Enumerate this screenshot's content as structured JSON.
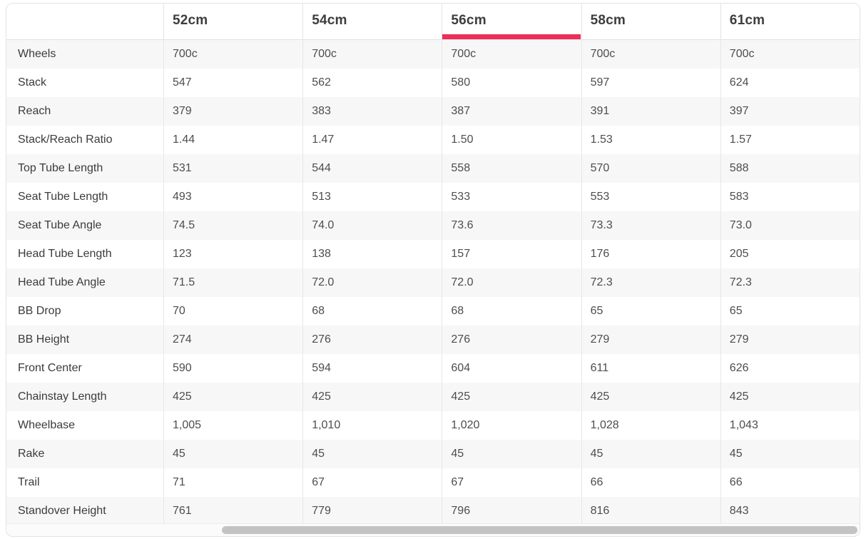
{
  "table": {
    "corner_label": "",
    "columns": [
      {
        "label": "52cm",
        "active": false
      },
      {
        "label": "54cm",
        "active": false
      },
      {
        "label": "56cm",
        "active": true
      },
      {
        "label": "58cm",
        "active": false
      },
      {
        "label": "61cm",
        "active": false
      }
    ],
    "rows": [
      {
        "label": "Wheels",
        "values": [
          "700c",
          "700c",
          "700c",
          "700c",
          "700c"
        ]
      },
      {
        "label": "Stack",
        "values": [
          "547",
          "562",
          "580",
          "597",
          "624"
        ]
      },
      {
        "label": "Reach",
        "values": [
          "379",
          "383",
          "387",
          "391",
          "397"
        ]
      },
      {
        "label": "Stack/Reach Ratio",
        "values": [
          "1.44",
          "1.47",
          "1.50",
          "1.53",
          "1.57"
        ]
      },
      {
        "label": "Top Tube Length",
        "values": [
          "531",
          "544",
          "558",
          "570",
          "588"
        ]
      },
      {
        "label": "Seat Tube Length",
        "values": [
          "493",
          "513",
          "533",
          "553",
          "583"
        ]
      },
      {
        "label": "Seat Tube Angle",
        "values": [
          "74.5",
          "74.0",
          "73.6",
          "73.3",
          "73.0"
        ]
      },
      {
        "label": "Head Tube Length",
        "values": [
          "123",
          "138",
          "157",
          "176",
          "205"
        ]
      },
      {
        "label": "Head Tube Angle",
        "values": [
          "71.5",
          "72.0",
          "72.0",
          "72.3",
          "72.3"
        ]
      },
      {
        "label": "BB Drop",
        "values": [
          "70",
          "68",
          "68",
          "65",
          "65"
        ]
      },
      {
        "label": "BB Height",
        "values": [
          "274",
          "276",
          "276",
          "279",
          "279"
        ]
      },
      {
        "label": "Front Center",
        "values": [
          "590",
          "594",
          "604",
          "611",
          "626"
        ]
      },
      {
        "label": "Chainstay Length",
        "values": [
          "425",
          "425",
          "425",
          "425",
          "425"
        ]
      },
      {
        "label": "Wheelbase",
        "values": [
          "1,005",
          "1,010",
          "1,020",
          "1,028",
          "1,043"
        ]
      },
      {
        "label": "Rake",
        "values": [
          "45",
          "45",
          "45",
          "45",
          "45"
        ]
      },
      {
        "label": "Trail",
        "values": [
          "71",
          "67",
          "67",
          "66",
          "66"
        ]
      },
      {
        "label": "Standover Height",
        "values": [
          "761",
          "779",
          "796",
          "816",
          "843"
        ]
      }
    ]
  },
  "colors": {
    "accent": "#ed2e56",
    "header_text": "#3d3d3d",
    "body_text": "#4d4d4d",
    "row_stripe": "#f7f7f7",
    "card_border": "#e2e2e2",
    "scrollbar_thumb": "#c3c3c3"
  }
}
